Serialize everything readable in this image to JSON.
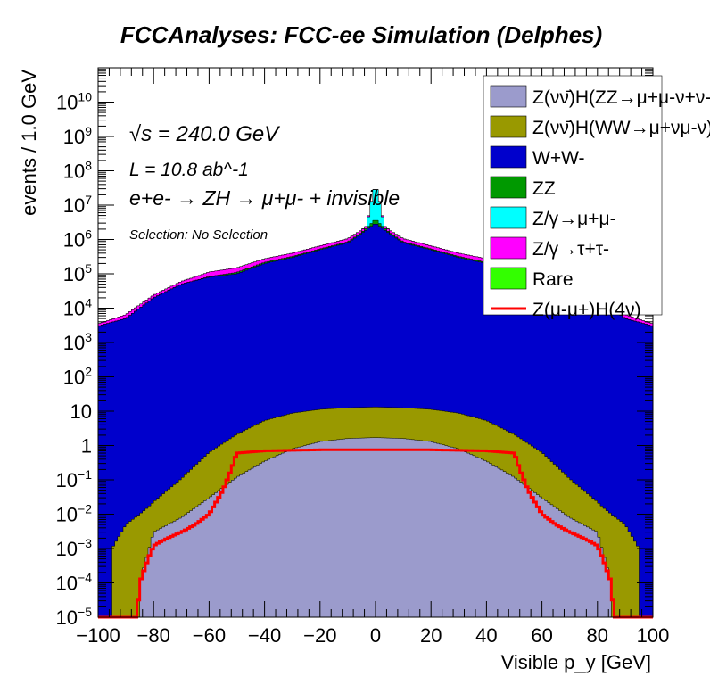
{
  "chart_data": {
    "type": "area",
    "title": "FCCAnalyses: FCC-ee Simulation (Delphes)",
    "xlabel": "Visible p_y [GeV]",
    "ylabel": "events / 1.0 GeV",
    "xlim": [
      -100,
      100
    ],
    "ylim": [
      1e-05,
      100000000000.0
    ],
    "yscale": "log",
    "stacked": true,
    "x_ticks": [
      -100,
      -80,
      -60,
      -40,
      -20,
      0,
      20,
      40,
      60,
      80,
      100
    ],
    "y_ticks": [
      {
        "value": 1e-05,
        "label": "10^-5"
      },
      {
        "value": 0.0001,
        "label": "10^-4"
      },
      {
        "value": 0.001,
        "label": "10^-3"
      },
      {
        "value": 0.01,
        "label": "10^-2"
      },
      {
        "value": 0.1,
        "label": "10^-1"
      },
      {
        "value": 1,
        "label": "1"
      },
      {
        "value": 10,
        "label": "10"
      },
      {
        "value": 100,
        "label": "10^2"
      },
      {
        "value": 1000.0,
        "label": "10^3"
      },
      {
        "value": 10000.0,
        "label": "10^4"
      },
      {
        "value": 100000.0,
        "label": "10^5"
      },
      {
        "value": 1000000.0,
        "label": "10^6"
      },
      {
        "value": 10000000.0,
        "label": "10^7"
      },
      {
        "value": 100000000.0,
        "label": "10^8"
      },
      {
        "value": 1000000000.0,
        "label": "10^9"
      },
      {
        "value": 10000000000.0,
        "label": "10^10"
      }
    ],
    "annotations": {
      "sqrt_s": "√s = 240.0 GeV",
      "lumi": "L = 10.8 ab^-1",
      "process": "e+e- → ZH → μ+μ- + invisible",
      "selection": "Selection: No Selection"
    },
    "legend_position": "top-right",
    "series": [
      {
        "name": "Z(νν̄)H(ZZ→μ+μ-ν+ν-)",
        "color": "#9b9bcc",
        "x": [
          -85,
          -80,
          -70,
          -60,
          -50,
          -40,
          -30,
          -20,
          -10,
          0,
          10,
          20,
          30,
          40,
          50,
          60,
          70,
          80,
          85
        ],
        "values": [
          0.0001,
          0.003,
          0.008,
          0.03,
          0.12,
          0.35,
          0.8,
          1.3,
          1.6,
          1.7,
          1.6,
          1.3,
          0.8,
          0.35,
          0.12,
          0.03,
          0.008,
          0.003,
          0.0001
        ]
      },
      {
        "name": "Z(νν̄)H(WW→μ+νμ-ν)",
        "color": "#999900",
        "x": [
          -95,
          -90,
          -80,
          -70,
          -60,
          -50,
          -40,
          -30,
          -20,
          -10,
          0,
          10,
          20,
          30,
          40,
          50,
          60,
          70,
          80,
          90,
          95
        ],
        "values": [
          0.001,
          0.005,
          0.02,
          0.1,
          0.6,
          2,
          5,
          8,
          10,
          11,
          11.5,
          11,
          10,
          8,
          5,
          2,
          0.6,
          0.1,
          0.02,
          0.005,
          0.001
        ]
      },
      {
        "name": "W+W-",
        "color": "#0000cc",
        "x": [
          -100,
          -90,
          -80,
          -70,
          -60,
          -50,
          -40,
          -30,
          -20,
          -10,
          -5,
          0,
          5,
          10,
          20,
          30,
          40,
          50,
          60,
          70,
          80,
          90,
          100
        ],
        "values": [
          3000,
          5000,
          20000,
          50000,
          80000,
          100000,
          200000,
          300000,
          500000,
          800000,
          1500000,
          3000000,
          1500000,
          800000,
          500000,
          300000,
          200000,
          100000,
          80000,
          50000,
          20000,
          5000,
          3000
        ]
      },
      {
        "name": "ZZ",
        "color": "#009900",
        "x": [
          -100,
          -95,
          -90,
          -85,
          -80,
          -75,
          -70,
          -60,
          -50,
          -40,
          -30,
          -20,
          -10,
          -5,
          0,
          5,
          10,
          20,
          30,
          40,
          50,
          60,
          70,
          75,
          80,
          85,
          90,
          95,
          100
        ],
        "values": [
          0.0005,
          0.003,
          0.01,
          0.05,
          0.3,
          3,
          100,
          3000,
          10000,
          15000,
          20000,
          30000,
          50000,
          100000,
          1000000,
          100000,
          50000,
          30000,
          20000,
          15000,
          10000,
          3000,
          100,
          3,
          0.3,
          0.05,
          0.01,
          0.003,
          0.0005
        ]
      },
      {
        "name": "Z/γ→μ+μ-",
        "color": "#00ffff",
        "x": [
          -3,
          -1,
          0,
          1,
          3
        ],
        "values": [
          1000000,
          20000000,
          30000000,
          20000000,
          1000000
        ]
      },
      {
        "name": "Z/γ→τ+τ-",
        "color": "#ff00ff",
        "x": [
          -100,
          -90,
          -80,
          -70,
          -60,
          -50,
          -40,
          -30,
          -20,
          -10,
          0,
          10,
          20,
          30,
          40,
          50,
          60,
          70,
          80,
          90,
          100
        ],
        "values": [
          500,
          1500,
          4000,
          10000,
          30000,
          40000,
          60000,
          80000,
          120000,
          200000,
          400000,
          200000,
          120000,
          80000,
          60000,
          40000,
          30000,
          10000,
          4000,
          1500,
          500
        ]
      },
      {
        "name": "Rare",
        "color": "#33ff00",
        "x": [
          -30,
          -20,
          -10,
          -5,
          0,
          5,
          10,
          20,
          30
        ],
        "values": [
          1000,
          3000,
          8000,
          30000,
          100000,
          30000,
          8000,
          3000,
          1000
        ]
      },
      {
        "name": "Z(μ-μ+)H(4ν)",
        "color": "#ff0000",
        "style": "line",
        "x": [
          -86,
          -85,
          -82,
          -80,
          -78,
          -75,
          -70,
          -65,
          -60,
          -55,
          -52,
          -50,
          -40,
          -20,
          0,
          20,
          40,
          50,
          52,
          55,
          60,
          65,
          70,
          75,
          78,
          80,
          82,
          85,
          86
        ],
        "values": [
          1e-05,
          0.0001,
          0.0005,
          0.0012,
          0.0015,
          0.002,
          0.003,
          0.005,
          0.01,
          0.05,
          0.2,
          0.6,
          0.7,
          0.75,
          0.75,
          0.75,
          0.7,
          0.6,
          0.2,
          0.05,
          0.01,
          0.005,
          0.003,
          0.002,
          0.0015,
          0.0012,
          0.0005,
          0.0001,
          1e-05
        ]
      }
    ]
  }
}
